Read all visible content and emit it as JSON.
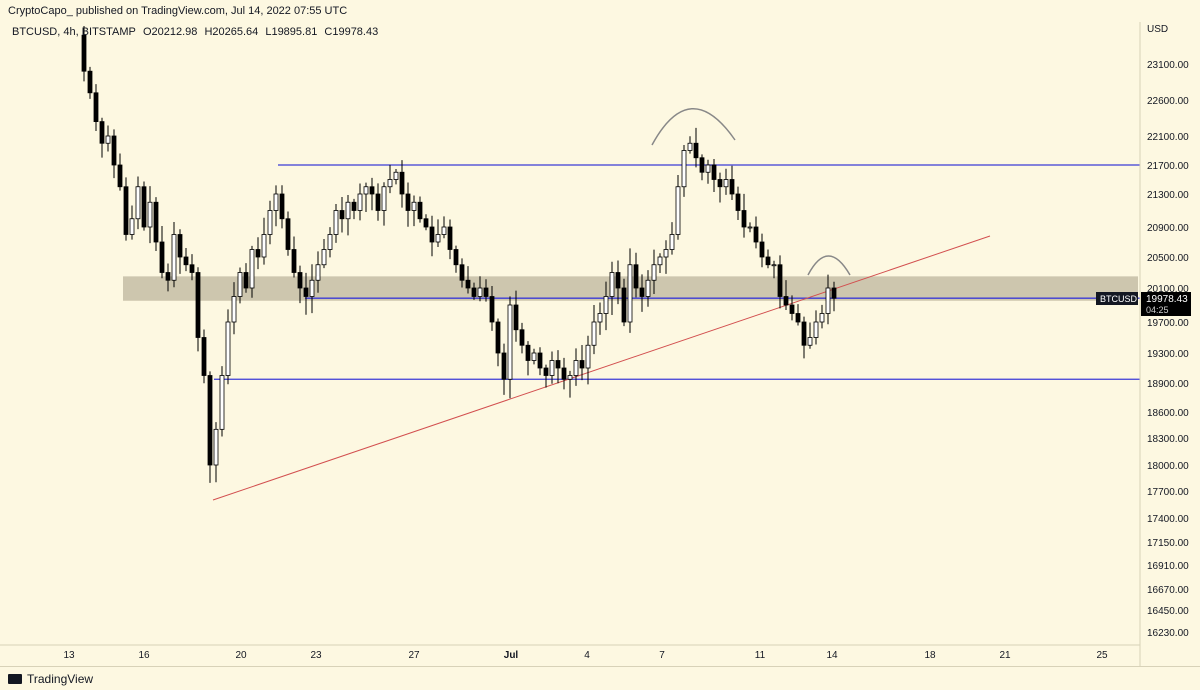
{
  "header": {
    "publisher_line": "CryptoCapo_ published on TradingView.com, Jul 14, 2022 07:55 UTC"
  },
  "legend": {
    "symbol": "BTCUSD, 4h, BITSTAMP",
    "open": "O20212.98",
    "high": "H20265.64",
    "low": "L19895.81",
    "close": "C19978.43"
  },
  "footer": {
    "brand": "TradingView"
  },
  "price_tag": {
    "symbol": "BTCUSD",
    "price": "19978.43",
    "countdown": "04:25"
  },
  "chart_data": {
    "type": "candlestick",
    "currency_label": "USD",
    "y_ticks": [
      "23100.00",
      "22600.00",
      "22100.00",
      "21700.00",
      "21300.00",
      "20900.00",
      "20500.00",
      "20100.00",
      "19700.00",
      "19300.00",
      "18900.00",
      "18600.00",
      "18300.00",
      "18000.00",
      "17700.00",
      "17400.00",
      "17150.00",
      "16910.00",
      "16670.00",
      "16450.00",
      "16230.00"
    ],
    "x_ticks": [
      "13",
      "16",
      "20",
      "23",
      "27",
      "Jul",
      "4",
      "7",
      "11",
      "14",
      "18",
      "21",
      "25"
    ],
    "ylim": [
      16100,
      23500
    ],
    "current_price": 19978.43,
    "colors": {
      "up": "#ffffff",
      "down": "#000000",
      "level": "#3b3bd6",
      "trend": "#d24f4f",
      "zone": "#c8c0a8",
      "arc": "#888888"
    },
    "horizontal_levels": [
      21700,
      19980,
      18950
    ],
    "support_zone": [
      19950,
      20250
    ],
    "trendline": {
      "from": [
        "Jun 18",
        17600
      ],
      "to": [
        "Jul 21",
        20780
      ]
    },
    "annotations": [
      "head-top arc near Jul 8",
      "small arc near Jul 14"
    ],
    "candles": []
  }
}
